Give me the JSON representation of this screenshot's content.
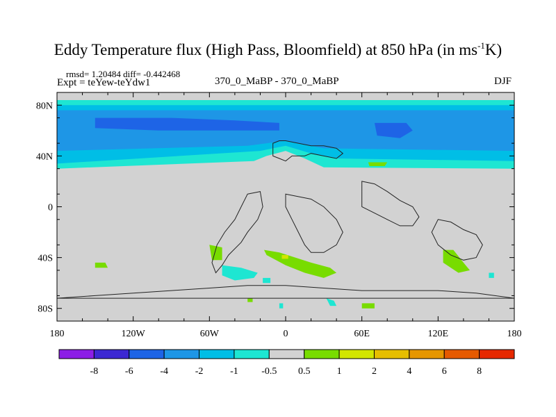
{
  "chart_data": {
    "type": "heatmap",
    "title_main": "Eddy Temperature flux (High Pass, Bloomfield) at 850 hPa (in ms",
    "title_sup": "-1",
    "title_end": "K)",
    "stats": "rmsd= 1.20484 diff= -0.442468",
    "expt": "Expt = teYew-teYdw1",
    "center_label": "370_0_MaBP - 370_0_MaBP",
    "season": "DJF",
    "x_ticks": [
      {
        "value": -180,
        "label": "180"
      },
      {
        "value": -120,
        "label": "120W"
      },
      {
        "value": -60,
        "label": "60W"
      },
      {
        "value": 0,
        "label": "0"
      },
      {
        "value": 60,
        "label": "60E"
      },
      {
        "value": 120,
        "label": "120E"
      },
      {
        "value": 180,
        "label": "180"
      }
    ],
    "y_ticks": [
      {
        "value": 80,
        "label": "80N"
      },
      {
        "value": 40,
        "label": "40N"
      },
      {
        "value": 0,
        "label": "0"
      },
      {
        "value": -40,
        "label": "40S"
      },
      {
        "value": -80,
        "label": "80S"
      }
    ],
    "xlim": [
      -180,
      180
    ],
    "ylim": [
      -90,
      90
    ],
    "colorbar": {
      "colors": [
        "#8c1ee6",
        "#3c28d2",
        "#1e64e6",
        "#1e96e6",
        "#00bee6",
        "#1ee6d2",
        "#d2d2d2",
        "#78dc00",
        "#d2e600",
        "#e6be00",
        "#e69600",
        "#e65a00",
        "#e62800"
      ],
      "labels": [
        "-8",
        "-6",
        "-4",
        "-2",
        "-1",
        "-0.5",
        "0.5",
        "1",
        "2",
        "4",
        "6",
        "8"
      ]
    },
    "regions": [
      {
        "name": "nh-band-outer",
        "color": "#1ee6d2",
        "points": [
          [
            -180,
            84
          ],
          [
            180,
            84
          ],
          [
            180,
            30
          ],
          [
            30,
            31
          ],
          [
            15,
            38
          ],
          [
            0,
            44
          ],
          [
            -15,
            40
          ],
          [
            -25,
            36
          ],
          [
            -180,
            30
          ]
        ]
      },
      {
        "name": "nh-band-cyan",
        "color": "#00bee6",
        "points": [
          [
            -180,
            80
          ],
          [
            180,
            80
          ],
          [
            180,
            36
          ],
          [
            40,
            38
          ],
          [
            20,
            42
          ],
          [
            0,
            48
          ],
          [
            -20,
            44
          ],
          [
            -180,
            34
          ]
        ]
      },
      {
        "name": "nh-band-medium",
        "color": "#1e96e6",
        "points": [
          [
            -180,
            76
          ],
          [
            180,
            76
          ],
          [
            180,
            44
          ],
          [
            30,
            46
          ],
          [
            0,
            52
          ],
          [
            -30,
            48
          ],
          [
            -180,
            44
          ]
        ]
      },
      {
        "name": "nh-core-west",
        "color": "#1e64e6",
        "points": [
          [
            -150,
            70
          ],
          [
            -90,
            70
          ],
          [
            -40,
            68
          ],
          [
            -5,
            66
          ],
          [
            -5,
            60
          ],
          [
            -40,
            60
          ],
          [
            -100,
            60
          ],
          [
            -150,
            62
          ]
        ]
      },
      {
        "name": "nh-core-east",
        "color": "#1e64e6",
        "points": [
          [
            70,
            66
          ],
          [
            95,
            66
          ],
          [
            100,
            60
          ],
          [
            90,
            54
          ],
          [
            72,
            56
          ]
        ]
      },
      {
        "name": "asia-positive",
        "color": "#78dc00",
        "points": [
          [
            65,
            35
          ],
          [
            80,
            35
          ],
          [
            78,
            32
          ],
          [
            66,
            32
          ]
        ]
      },
      {
        "name": "sh-positive-main",
        "color": "#78dc00",
        "points": [
          [
            -17,
            -34
          ],
          [
            -5,
            -36
          ],
          [
            20,
            -44
          ],
          [
            35,
            -48
          ],
          [
            40,
            -52
          ],
          [
            30,
            -56
          ],
          [
            15,
            -52
          ],
          [
            0,
            -46
          ],
          [
            -15,
            -38
          ]
        ]
      },
      {
        "name": "sh-positive-dot",
        "color": "#d2e600",
        "points": [
          [
            -3,
            -38
          ],
          [
            2,
            -38
          ],
          [
            2,
            -41
          ],
          [
            -3,
            -41
          ]
        ]
      },
      {
        "name": "sa-positive",
        "color": "#78dc00",
        "points": [
          [
            -60,
            -30
          ],
          [
            -50,
            -32
          ],
          [
            -50,
            -42
          ],
          [
            -58,
            -42
          ]
        ]
      },
      {
        "name": "pacific-positive",
        "color": "#78dc00",
        "points": [
          [
            -150,
            -44
          ],
          [
            -142,
            -44
          ],
          [
            -140,
            -48
          ],
          [
            -150,
            -48
          ]
        ]
      },
      {
        "name": "aus-positive",
        "color": "#78dc00",
        "points": [
          [
            124,
            -34
          ],
          [
            132,
            -34
          ],
          [
            140,
            -44
          ],
          [
            145,
            -50
          ],
          [
            136,
            -52
          ],
          [
            124,
            -44
          ]
        ]
      },
      {
        "name": "aus-cyan",
        "color": "#1ee6d2",
        "points": [
          [
            160,
            -52
          ],
          [
            164,
            -52
          ],
          [
            164,
            -56
          ],
          [
            160,
            -56
          ]
        ]
      },
      {
        "name": "sh-negative-1",
        "color": "#1ee6d2",
        "points": [
          [
            -50,
            -46
          ],
          [
            -35,
            -48
          ],
          [
            -22,
            -52
          ],
          [
            -25,
            -56
          ],
          [
            -40,
            -58
          ],
          [
            -50,
            -54
          ]
        ]
      },
      {
        "name": "sh-negative-2",
        "color": "#1ee6d2",
        "points": [
          [
            -5,
            -76
          ],
          [
            -2,
            -76
          ],
          [
            -2,
            -80
          ],
          [
            -5,
            -80
          ]
        ]
      },
      {
        "name": "sh-negative-3",
        "color": "#1ee6d2",
        "points": [
          [
            32,
            -72
          ],
          [
            38,
            -74
          ],
          [
            40,
            -78
          ],
          [
            35,
            -78
          ]
        ]
      },
      {
        "name": "sh-negative-4",
        "color": "#1ee6d2",
        "points": [
          [
            -18,
            -56
          ],
          [
            -12,
            -56
          ],
          [
            -12,
            -60
          ],
          [
            -18,
            -60
          ]
        ]
      },
      {
        "name": "sh-positive-small",
        "color": "#78dc00",
        "points": [
          [
            -30,
            -72
          ],
          [
            -26,
            -72
          ],
          [
            -26,
            -75
          ],
          [
            -30,
            -75
          ]
        ]
      },
      {
        "name": "sh-positive-small-2",
        "color": "#78dc00",
        "points": [
          [
            60,
            -76
          ],
          [
            70,
            -76
          ],
          [
            70,
            -80
          ],
          [
            60,
            -80
          ]
        ]
      }
    ],
    "outlines": [
      {
        "name": "africa-europe-outline",
        "points": [
          [
            -10,
            50
          ],
          [
            -5,
            52
          ],
          [
            0,
            52
          ],
          [
            10,
            50
          ],
          [
            20,
            48
          ],
          [
            30,
            48
          ],
          [
            40,
            46
          ],
          [
            45,
            42
          ],
          [
            40,
            38
          ],
          [
            30,
            40
          ],
          [
            20,
            42
          ],
          [
            15,
            40
          ],
          [
            5,
            40
          ],
          [
            0,
            36
          ],
          [
            -5,
            38
          ],
          [
            -10,
            40
          ]
        ]
      },
      {
        "name": "south-america-outline",
        "points": [
          [
            -30,
            10
          ],
          [
            -20,
            12
          ],
          [
            -18,
            0
          ],
          [
            -22,
            -10
          ],
          [
            -30,
            -20
          ],
          [
            -35,
            -28
          ],
          [
            -45,
            -38
          ],
          [
            -50,
            -46
          ],
          [
            -55,
            -52
          ],
          [
            -58,
            -44
          ],
          [
            -54,
            -30
          ],
          [
            -48,
            -20
          ],
          [
            -40,
            -10
          ],
          [
            -35,
            0
          ]
        ]
      },
      {
        "name": "africa-outline",
        "points": [
          [
            0,
            10
          ],
          [
            10,
            8
          ],
          [
            20,
            6
          ],
          [
            30,
            0
          ],
          [
            40,
            -10
          ],
          [
            45,
            -20
          ],
          [
            40,
            -30
          ],
          [
            30,
            -36
          ],
          [
            20,
            -36
          ],
          [
            15,
            -30
          ],
          [
            10,
            -20
          ],
          [
            5,
            -10
          ],
          [
            0,
            0
          ]
        ]
      },
      {
        "name": "asia-outline",
        "points": [
          [
            60,
            20
          ],
          [
            70,
            18
          ],
          [
            80,
            12
          ],
          [
            90,
            5
          ],
          [
            100,
            0
          ],
          [
            105,
            -8
          ],
          [
            100,
            -15
          ],
          [
            90,
            -15
          ],
          [
            80,
            -10
          ],
          [
            70,
            -5
          ],
          [
            60,
            0
          ]
        ]
      },
      {
        "name": "australia-outline",
        "points": [
          [
            120,
            -10
          ],
          [
            130,
            -12
          ],
          [
            140,
            -18
          ],
          [
            150,
            -22
          ],
          [
            155,
            -30
          ],
          [
            150,
            -40
          ],
          [
            140,
            -42
          ],
          [
            130,
            -38
          ],
          [
            120,
            -30
          ],
          [
            115,
            -20
          ]
        ]
      },
      {
        "name": "antarctica-outline",
        "points": [
          [
            -180,
            -72
          ],
          [
            -150,
            -70
          ],
          [
            -120,
            -68
          ],
          [
            -90,
            -66
          ],
          [
            -60,
            -64
          ],
          [
            -30,
            -62
          ],
          [
            0,
            -62
          ],
          [
            30,
            -64
          ],
          [
            60,
            -66
          ],
          [
            90,
            -66
          ],
          [
            120,
            -66
          ],
          [
            150,
            -68
          ],
          [
            180,
            -72
          ]
        ]
      }
    ]
  }
}
